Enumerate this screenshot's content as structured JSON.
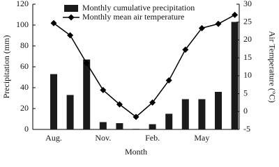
{
  "chart_data": {
    "type": "bar",
    "categories": [
      "Aug.",
      null,
      null,
      "Nov.",
      null,
      null,
      "Feb.",
      null,
      null,
      "May",
      null,
      null
    ],
    "series": [
      {
        "name": "Monthly cumulative precipitation",
        "color": "#1a1a1a",
        "type": "bar",
        "values": [
          53,
          33,
          67,
          7,
          6,
          0.5,
          5,
          15,
          29,
          29,
          36,
          103
        ]
      },
      {
        "name": "Monthly mean air temperature",
        "color": "#000000",
        "type": "line",
        "axis": "y2",
        "values": [
          24.7,
          21.3,
          13.5,
          6,
          2,
          -1.5,
          2.5,
          8.7,
          17.3,
          23.3,
          24.5,
          27
        ]
      }
    ],
    "xlabel": "Month",
    "ylabel": "Precipitation (mm)",
    "y2label": "Air Temperature (°C)",
    "ylim": [
      0,
      120
    ],
    "yticks": [
      0,
      20,
      40,
      60,
      80,
      100,
      120
    ],
    "y2lim": [
      -5,
      30
    ],
    "y2ticks": [
      -5,
      0,
      5,
      10,
      15,
      20,
      25,
      30
    ],
    "grid": false,
    "legend": "top"
  }
}
